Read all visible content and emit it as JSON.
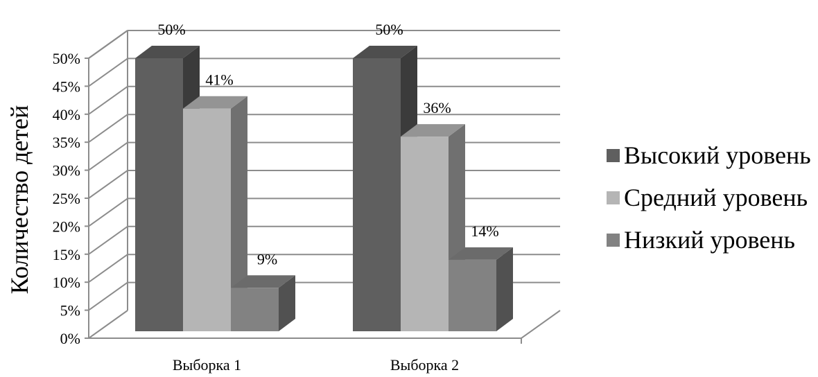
{
  "chart_data": {
    "type": "bar",
    "title": "",
    "xlabel": "",
    "ylabel": "Количество детей",
    "ylim": [
      0,
      50
    ],
    "ytick_step": 5,
    "yticks": [
      "0%",
      "5%",
      "10%",
      "15%",
      "20%",
      "25%",
      "30%",
      "35%",
      "40%",
      "45%",
      "50%"
    ],
    "categories": [
      "Выборка 1",
      "Выборка 2"
    ],
    "series": [
      {
        "name": "Высокий уровень",
        "values": [
          50,
          50
        ],
        "labels": [
          "50%",
          "50%"
        ],
        "color": "#5f5f5f"
      },
      {
        "name": "Средний уровень",
        "values": [
          41,
          36
        ],
        "labels": [
          "41%",
          "36%"
        ],
        "color": "#b5b5b5"
      },
      {
        "name": "Низкий уровень",
        "values": [
          9,
          14
        ],
        "labels": [
          "9%",
          "14%"
        ],
        "color": "#828282"
      }
    ],
    "grid": true,
    "legend_position": "right",
    "style": "3d-column"
  }
}
